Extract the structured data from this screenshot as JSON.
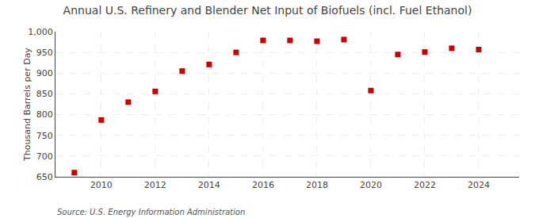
{
  "chart_data": {
    "type": "scatter",
    "title": "Annual U.S. Refinery and Blender Net Input of Biofuels (incl. Fuel Ethanol)",
    "ylabel": "Thousand Barrels per Day",
    "annotations": [
      "Source: U.S. Energy Information Administration"
    ],
    "x": [
      2009,
      2010,
      2011,
      2012,
      2013,
      2014,
      2015,
      2016,
      2017,
      2018,
      2019,
      2020,
      2021,
      2022,
      2023,
      2024
    ],
    "values": [
      660,
      787,
      830,
      856,
      905,
      921,
      950,
      979,
      979,
      977,
      981,
      858,
      945,
      951,
      960,
      957
    ],
    "color": "#CC0000",
    "marker": "square",
    "xlim": [
      2008.3,
      2025.5
    ],
    "xticks": [
      2010,
      2012,
      2014,
      2016,
      2018,
      2020,
      2022,
      2024
    ],
    "ylim": [
      650,
      1000
    ],
    "yticks": [
      650,
      700,
      750,
      800,
      850,
      900,
      950,
      {
        "value": 1000,
        "label": "1,000"
      }
    ],
    "grid": true
  }
}
